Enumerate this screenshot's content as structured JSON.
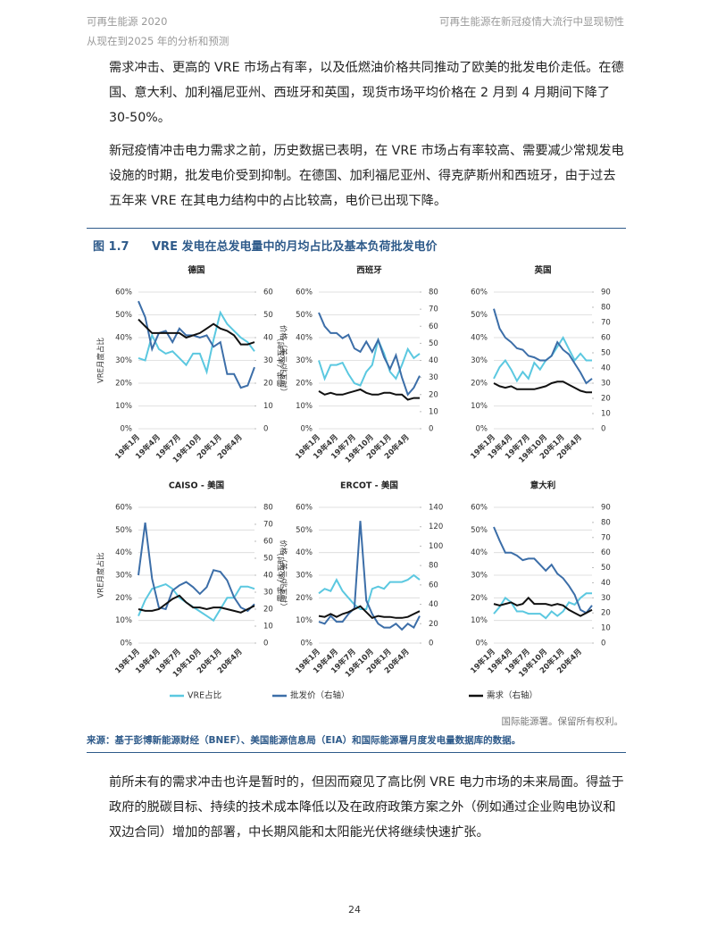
{
  "header": {
    "left_title": "可再生能源 2020",
    "left_subtitle": "从现在到2025 年的分析和预测",
    "right_title": "可再生能源在新冠疫情大流行中显现韧性"
  },
  "paragraphs": [
    "需求冲击、更高的 VRE 市场占有率，以及低燃油价格共同推动了欧美的批发电价走低。在德国、意大利、加利福尼亚州、西班牙和英国，现货市场平均价格在 2 月到 4 月期间下降了 30-50%。",
    "新冠疫情冲击电力需求之前，历史数据已表明，在 VRE 市场占有率较高、需要减少常规发电设施的时期，批发电价受到抑制。在德国、加利福尼亚州、得克萨斯州和西班牙，由于过去五年来 VRE 在其电力结构中的占比较高，电价已出现下降。",
    "前所未有的需求冲击也许是暂时的，但因而窥见了高比例 VRE 电力市场的未来局面。得益于政府的脱碳目标、持续的技术成本降低以及在政府政策方案之外（例如通过企业购电协议和双边合同）增加的部署，中长期风能和太阳能光伏将继续快速扩张。"
  ],
  "figure": {
    "label": "图 1.7",
    "title": "VRE 发电在总发电量中的月均占比及基本负荷批发电价",
    "copyright": "国际能源署。保留所有权利。",
    "source": "来源：基于彭博新能源财经（BNEF）、美国能源信息局（EIA）和国际能源署月度发电量数据库的数据。"
  },
  "page_number": "24",
  "chart_data": [
    {
      "type": "line",
      "title": "德国",
      "ylabel": "VRE月度占比",
      "y2label": "价格（美元/兆瓦时）",
      "categories": [
        "19年1月",
        null,
        null,
        "19年4月",
        null,
        null,
        "19年7月",
        null,
        null,
        "19年10月",
        null,
        null,
        "20年1月",
        null,
        null,
        "20年4月",
        null,
        null
      ],
      "ylim": [
        0,
        60
      ],
      "yticks": [
        {
          "value": 0,
          "label": "0%"
        },
        {
          "value": 10,
          "label": "10%"
        },
        {
          "value": 20,
          "label": "20%"
        },
        {
          "value": 30,
          "label": "30%"
        },
        {
          "value": 40,
          "label": "40%"
        },
        {
          "value": 50,
          "label": "50%"
        },
        {
          "value": 60,
          "label": "60%"
        }
      ],
      "y2lim": [
        0,
        60
      ],
      "y2ticks": [
        0,
        10,
        20,
        30,
        40,
        50,
        60
      ],
      "grid": true,
      "series": [
        {
          "name": "VRE占比",
          "color": "#5bc8e0",
          "values": [
            31,
            30,
            41,
            35,
            33,
            34,
            31,
            28,
            33,
            33,
            25,
            39,
            51,
            46,
            43,
            40,
            38,
            34
          ]
        },
        {
          "name": "批发价（右轴）",
          "color": "#3c6ea8",
          "axis": "y2",
          "values": [
            56,
            49,
            35,
            42,
            43,
            38,
            44,
            41,
            41,
            40,
            41,
            36,
            38,
            24,
            24,
            18,
            19,
            27
          ]
        },
        {
          "name": "需求（右轴）",
          "color": "#111111",
          "axis": "y2",
          "values": [
            48,
            45,
            42,
            42,
            42,
            42,
            42,
            40,
            41,
            42,
            44,
            46,
            44,
            43,
            41,
            37,
            37,
            38
          ]
        }
      ]
    },
    {
      "type": "line",
      "title": "西班牙",
      "ylabel": "需求（太瓦时）",
      "categories": [
        "19年1月",
        null,
        null,
        "19年4月",
        null,
        null,
        "19年7月",
        null,
        null,
        "19年10月",
        null,
        null,
        "20年1月",
        null,
        null,
        "20年4月",
        null,
        null
      ],
      "ylim": [
        0,
        60
      ],
      "yticks": [
        {
          "value": 0,
          "label": "0%"
        },
        {
          "value": 10,
          "label": "10%"
        },
        {
          "value": 20,
          "label": "20%"
        },
        {
          "value": 30,
          "label": "30%"
        },
        {
          "value": 40,
          "label": "40%"
        },
        {
          "value": 50,
          "label": "50%"
        },
        {
          "value": 60,
          "label": "60%"
        }
      ],
      "y2lim": [
        0,
        80
      ],
      "y2ticks": [
        0,
        10,
        20,
        30,
        40,
        50,
        60,
        70,
        80
      ],
      "grid": true,
      "series": [
        {
          "name": "VRE占比",
          "color": "#5bc8e0",
          "values": [
            30,
            22,
            28,
            28,
            29,
            24,
            20,
            19,
            25,
            28,
            39,
            33,
            25,
            22,
            28,
            35,
            31,
            33
          ]
        },
        {
          "name": "批发价（右轴）",
          "color": "#3c6ea8",
          "axis": "y2",
          "values": [
            68,
            60,
            56,
            56,
            53,
            55,
            47,
            45,
            51,
            45,
            52,
            42,
            35,
            43,
            30,
            20,
            24,
            31
          ]
        },
        {
          "name": "需求（右轴）",
          "color": "#111111",
          "axis": "y2",
          "values": [
            22,
            20,
            21,
            20,
            20,
            21,
            22,
            23,
            21,
            20,
            20,
            21,
            21,
            20,
            20,
            17,
            18,
            18
          ]
        }
      ]
    },
    {
      "type": "line",
      "title": "英国",
      "categories": [
        "19年1月",
        null,
        null,
        "19年4月",
        null,
        null,
        "19年7月",
        null,
        null,
        "19年10月",
        null,
        null,
        "20年1月",
        null,
        null,
        "20年4月",
        null,
        null
      ],
      "ylim": [
        0,
        60
      ],
      "yticks": [
        {
          "value": 0,
          "label": "0%"
        },
        {
          "value": 10,
          "label": "10%"
        },
        {
          "value": 20,
          "label": "20%"
        },
        {
          "value": 30,
          "label": "30%"
        },
        {
          "value": 40,
          "label": "40%"
        },
        {
          "value": 50,
          "label": "50%"
        },
        {
          "value": 60,
          "label": "60%"
        }
      ],
      "y2lim": [
        0,
        90
      ],
      "y2ticks": [
        0,
        10,
        20,
        30,
        40,
        50,
        60,
        70,
        80,
        90
      ],
      "grid": true,
      "series": [
        {
          "name": "VRE占比",
          "color": "#5bc8e0",
          "values": [
            22,
            27,
            30,
            26,
            21,
            25,
            22,
            29,
            26,
            30,
            32,
            36,
            40,
            35,
            30,
            33,
            30,
            30
          ]
        },
        {
          "name": "批发价（右轴）",
          "color": "#3c6ea8",
          "axis": "y2",
          "values": [
            79,
            66,
            60,
            57,
            53,
            52,
            48,
            47,
            45,
            45,
            48,
            57,
            52,
            49,
            43,
            37,
            30,
            33
          ]
        },
        {
          "name": "需求（右轴）",
          "color": "#111111",
          "axis": "y2",
          "values": [
            30,
            28,
            27,
            28,
            26,
            26,
            26,
            26,
            27,
            28,
            30,
            31,
            31,
            29,
            27,
            25,
            24,
            24
          ]
        }
      ]
    },
    {
      "type": "line",
      "title": "CAISO - 美国",
      "ylabel": "VRE月度占比",
      "y2label": "价格（美元/兆瓦时）",
      "categories": [
        "19年1月",
        null,
        null,
        "19年4月",
        null,
        null,
        "19年7月",
        null,
        null,
        "19年10月",
        null,
        null,
        "20年1月",
        null,
        null,
        "20年4月",
        null,
        null
      ],
      "ylim": [
        0,
        60
      ],
      "yticks": [
        {
          "value": 0,
          "label": "0%"
        },
        {
          "value": 10,
          "label": "10%"
        },
        {
          "value": 20,
          "label": "20%"
        },
        {
          "value": 30,
          "label": "30%"
        },
        {
          "value": 40,
          "label": "40%"
        },
        {
          "value": 50,
          "label": "50%"
        },
        {
          "value": 60,
          "label": "60%"
        }
      ],
      "y2lim": [
        0,
        80
      ],
      "y2ticks": [
        0,
        10,
        20,
        30,
        40,
        50,
        60,
        70,
        80
      ],
      "grid": true,
      "series": [
        {
          "name": "VRE占比",
          "color": "#5bc8e0",
          "values": [
            12,
            19,
            24,
            25,
            26,
            24,
            20,
            18,
            16,
            14,
            12,
            10,
            15,
            20,
            20,
            25,
            25,
            24
          ]
        },
        {
          "name": "批发价（右轴）",
          "color": "#3c6ea8",
          "axis": "y2",
          "values": [
            40,
            71,
            38,
            21,
            20,
            31,
            34,
            36,
            33,
            29,
            33,
            43,
            42,
            37,
            27,
            21,
            19,
            23
          ]
        },
        {
          "name": "需求（右轴）",
          "color": "#111111",
          "axis": "y2",
          "values": [
            20,
            19,
            19,
            20,
            23,
            26,
            28,
            24,
            21,
            21,
            20,
            21,
            21,
            20,
            19,
            18,
            20,
            22
          ]
        }
      ]
    },
    {
      "type": "line",
      "title": "ERCOT - 美国",
      "ylabel": "需求（太瓦时）",
      "categories": [
        "19年1月",
        null,
        null,
        "19年4月",
        null,
        null,
        "19年7月",
        null,
        null,
        "19年10月",
        null,
        null,
        "20年1月",
        null,
        null,
        "20年4月",
        null,
        null
      ],
      "ylim": [
        0,
        60
      ],
      "yticks": [
        {
          "value": 0,
          "label": "0%"
        },
        {
          "value": 10,
          "label": "10%"
        },
        {
          "value": 20,
          "label": "20%"
        },
        {
          "value": 30,
          "label": "30%"
        },
        {
          "value": 40,
          "label": "40%"
        },
        {
          "value": 50,
          "label": "50%"
        },
        {
          "value": 60,
          "label": "60%"
        }
      ],
      "y2lim": [
        0,
        140
      ],
      "y2ticks": [
        0,
        20,
        40,
        60,
        80,
        100,
        120,
        140
      ],
      "grid": true,
      "series": [
        {
          "name": "VRE占比",
          "color": "#5bc8e0",
          "values": [
            22,
            24,
            23,
            28,
            23,
            20,
            17,
            15,
            15,
            24,
            25,
            24,
            27,
            27,
            27,
            28,
            30,
            28
          ]
        },
        {
          "name": "批发价（右轴）",
          "color": "#3c6ea8",
          "axis": "y2",
          "values": [
            22,
            20,
            28,
            22,
            22,
            30,
            36,
            126,
            44,
            30,
            20,
            16,
            16,
            20,
            14,
            20,
            16,
            28
          ]
        },
        {
          "name": "需求（右轴）",
          "color": "#111111",
          "axis": "y2",
          "values": [
            28,
            27,
            30,
            27,
            30,
            32,
            35,
            38,
            32,
            26,
            28,
            27,
            27,
            26,
            26,
            27,
            30,
            33
          ]
        }
      ]
    },
    {
      "type": "line",
      "title": "意大利",
      "categories": [
        "19年1月",
        null,
        null,
        "19年4月",
        null,
        null,
        "19年7月",
        null,
        null,
        "19年10月",
        null,
        null,
        "20年1月",
        null,
        null,
        "20年4月",
        null,
        null
      ],
      "ylim": [
        0,
        60
      ],
      "yticks": [
        {
          "value": 0,
          "label": "0%"
        },
        {
          "value": 10,
          "label": "10%"
        },
        {
          "value": 20,
          "label": "20%"
        },
        {
          "value": 30,
          "label": "30%"
        },
        {
          "value": 40,
          "label": "40%"
        },
        {
          "value": 50,
          "label": "50%"
        },
        {
          "value": 60,
          "label": "60%"
        }
      ],
      "y2lim": [
        0,
        90
      ],
      "y2ticks": [
        0,
        10,
        20,
        30,
        40,
        50,
        60,
        70,
        80,
        90
      ],
      "grid": true,
      "series": [
        {
          "name": "VRE占比",
          "color": "#5bc8e0",
          "values": [
            13,
            16,
            20,
            18,
            14,
            14,
            13,
            13,
            13,
            11,
            14,
            12,
            14,
            18,
            17,
            20,
            22,
            22
          ]
        },
        {
          "name": "批发价（右轴）",
          "color": "#3c6ea8",
          "axis": "y2",
          "values": [
            77,
            68,
            60,
            60,
            58,
            55,
            56,
            56,
            52,
            48,
            52,
            46,
            43,
            38,
            32,
            22,
            20,
            25
          ]
        },
        {
          "name": "需求（右轴）",
          "color": "#111111",
          "axis": "y2",
          "values": [
            26,
            25,
            26,
            27,
            25,
            26,
            30,
            26,
            26,
            26,
            25,
            26,
            25,
            22,
            20,
            18,
            20,
            22
          ]
        }
      ]
    }
  ]
}
